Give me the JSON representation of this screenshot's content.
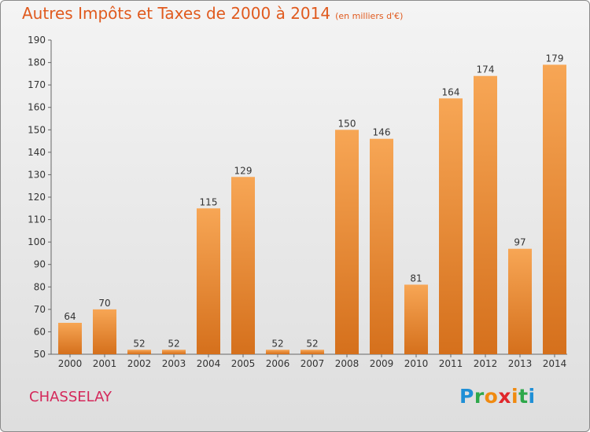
{
  "title": "Autres Impôts et Taxes de 2000 à 2014",
  "unit": "(en milliers d'€)",
  "commune": "CHASSELAY",
  "logo": {
    "text": "Proxiti",
    "colors": [
      "#1f8fd6",
      "#2ea84a",
      "#f08a10",
      "#e0262b",
      "#f08a10",
      "#2ea84a",
      "#1f8fd6"
    ]
  },
  "colors": {
    "title": "#e05a1e",
    "commune": "#d4285a",
    "bar_light": "#f7a655",
    "bar_dark": "#d5701c"
  },
  "chart_data": {
    "type": "bar",
    "categories": [
      "2000",
      "2001",
      "2002",
      "2003",
      "2004",
      "2005",
      "2006",
      "2007",
      "2008",
      "2009",
      "2010",
      "2011",
      "2012",
      "2013",
      "2014"
    ],
    "values": [
      64,
      70,
      52,
      52,
      115,
      129,
      52,
      52,
      150,
      146,
      81,
      164,
      174,
      97,
      179
    ],
    "ylim": [
      50,
      190
    ],
    "yticks": [
      50,
      60,
      70,
      80,
      90,
      100,
      110,
      120,
      130,
      140,
      150,
      160,
      170,
      180,
      190
    ],
    "grid": false,
    "legend": "none"
  }
}
